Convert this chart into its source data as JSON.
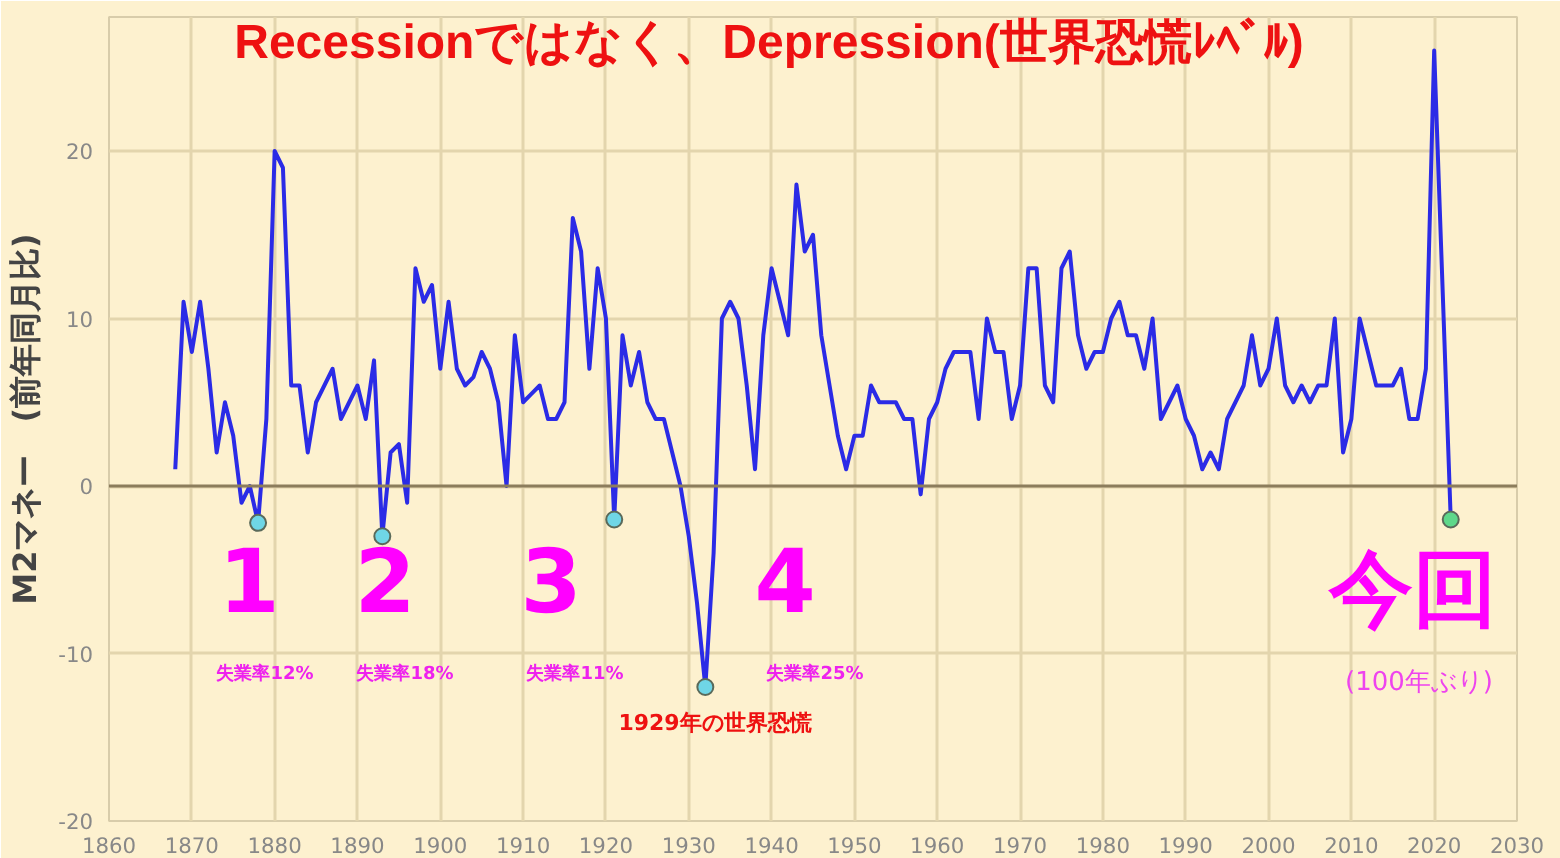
{
  "chart_data": {
    "type": "line",
    "title": "Recessionではなく、Depression(世界恐慌ﾚﾍﾞﾙ)",
    "ylabel": "M2マネー　(前年同月比)",
    "xlim": [
      1860,
      2030
    ],
    "xticks": [
      1860,
      1870,
      1880,
      1890,
      1900,
      1910,
      1920,
      1930,
      1940,
      1950,
      1960,
      1970,
      1980,
      1990,
      2000,
      2010,
      2020,
      2030
    ],
    "ylim": [
      -20,
      28
    ],
    "yticks": [
      -20,
      -10,
      0,
      10,
      20
    ],
    "grid": true,
    "ref_lines": [
      {
        "axis": "y",
        "value": 0,
        "label": null,
        "color": "#8c7d5c"
      }
    ],
    "series": [
      {
        "color": "#2b2be6",
        "marker": "none",
        "x": [
          1868,
          1869,
          1870,
          1871,
          1872,
          1873,
          1874,
          1875,
          1876,
          1877,
          1878,
          1879,
          1880,
          1881,
          1882,
          1883,
          1884,
          1885,
          1886,
          1887,
          1888,
          1889,
          1890,
          1891,
          1892,
          1893,
          1894,
          1895,
          1896,
          1897,
          1898,
          1899,
          1900,
          1901,
          1902,
          1903,
          1904,
          1905,
          1906,
          1907,
          1908,
          1909,
          1910,
          1911,
          1912,
          1913,
          1914,
          1915,
          1916,
          1917,
          1918,
          1919,
          1920,
          1921,
          1922,
          1923,
          1924,
          1925,
          1926,
          1927,
          1928,
          1929,
          1930,
          1931,
          1932,
          1933,
          1934,
          1935,
          1936,
          1937,
          1938,
          1939,
          1940,
          1941,
          1942,
          1943,
          1944,
          1945,
          1946,
          1947,
          1948,
          1949,
          1950,
          1951,
          1952,
          1953,
          1954,
          1955,
          1956,
          1957,
          1958,
          1959,
          1960,
          1961,
          1962,
          1963,
          1964,
          1965,
          1966,
          1967,
          1968,
          1969,
          1970,
          1971,
          1972,
          1973,
          1974,
          1975,
          1976,
          1977,
          1978,
          1979,
          1980,
          1981,
          1982,
          1983,
          1984,
          1985,
          1986,
          1987,
          1988,
          1989,
          1990,
          1991,
          1992,
          1993,
          1994,
          1995,
          1996,
          1997,
          1998,
          1999,
          2000,
          2001,
          2002,
          2003,
          2004,
          2005,
          2006,
          2007,
          2008,
          2009,
          2010,
          2011,
          2012,
          2013,
          2014,
          2015,
          2016,
          2017,
          2018,
          2019,
          2020,
          2021,
          2022
        ],
        "values": [
          1,
          11,
          8,
          11,
          7,
          2,
          5,
          3,
          -1,
          0,
          -2.2,
          4,
          20,
          19,
          6,
          6,
          2,
          5,
          6,
          7,
          4,
          5,
          6,
          4,
          7.5,
          -3,
          2,
          2.5,
          -1,
          13,
          11,
          12,
          7,
          11,
          7,
          6,
          6.5,
          8,
          7,
          5,
          0,
          9,
          5,
          5.5,
          6,
          4,
          4,
          5,
          16,
          14,
          7,
          13,
          10,
          -2,
          9,
          6,
          8,
          5,
          4,
          4,
          2,
          0,
          -3,
          -7,
          -12,
          -4,
          10,
          11,
          10,
          6,
          1,
          9,
          13,
          11,
          9,
          18,
          14,
          15,
          9,
          6,
          3,
          1,
          3,
          3,
          6,
          5,
          5,
          5,
          4,
          4,
          -0.5,
          4,
          5,
          7,
          8,
          8,
          8,
          4,
          10,
          8,
          8,
          4,
          6,
          13,
          13,
          6,
          5,
          13,
          14,
          9,
          7,
          8,
          8,
          10,
          11,
          9,
          9,
          7,
          10,
          4,
          5,
          6,
          4,
          3,
          1,
          2,
          1,
          4,
          5,
          6,
          9,
          6,
          7,
          10,
          6,
          5,
          6,
          5,
          6,
          6,
          10,
          2,
          4,
          10,
          8,
          6,
          6,
          6,
          7,
          4,
          4,
          7,
          26,
          12,
          -2
        ]
      },
      {
        "type": "scatter",
        "marker": "circle",
        "x": [
          1878,
          1893,
          1921,
          1932,
          2022
        ],
        "values": [
          -2.2,
          -3,
          -2,
          -12,
          -2
        ],
        "colors": [
          "#6fd6e6",
          "#6fd6e6",
          "#6fd6e6",
          "#6fd6e6",
          "#5ed88a"
        ]
      }
    ],
    "annotations": [
      "1",
      "失業率12%",
      "2",
      "失業率18%",
      "3",
      "失業率11%",
      "4",
      "失業率25%",
      "1929年の世界恐慌",
      "今回",
      "(100年ぶり)"
    ]
  }
}
